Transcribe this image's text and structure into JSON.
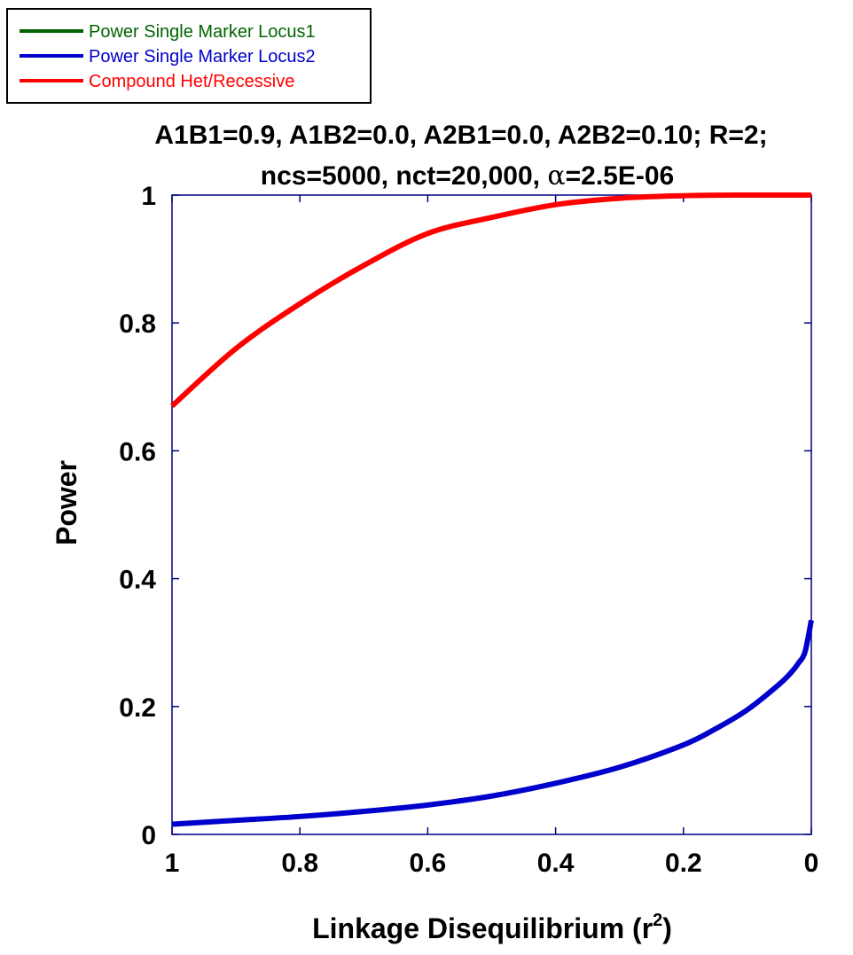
{
  "chart_data": {
    "type": "line",
    "title_line1": "A1B1=0.9, A1B2=0.0, A2B1=0.0, A2B2=0.10; R=2;",
    "title_line2_prefix": "ncs=5000, nct=20,000, ",
    "title_line2_alpha": "α",
    "title_line2_suffix": "=2.5E-06",
    "xlabel_text": "Linkage Disequilibrium (r",
    "xlabel_sup": "2",
    "xlabel_close": ")",
    "ylabel": "Power",
    "xlim": [
      1,
      0
    ],
    "ylim": [
      0,
      1
    ],
    "x_reversed": true,
    "grid": false,
    "x_ticks": [
      1,
      0.8,
      0.6,
      0.4,
      0.2,
      0
    ],
    "x_tick_labels": [
      "1",
      "0.8",
      "0.6",
      "0.4",
      "0.2",
      "0"
    ],
    "y_ticks": [
      0,
      0.2,
      0.4,
      0.6,
      0.8,
      1
    ],
    "y_tick_labels": [
      "0",
      "0.2",
      "0.4",
      "0.6",
      "0.8",
      "1"
    ],
    "legend_position": "top-left, outside plot",
    "legend": [
      {
        "label": "Power Single Marker Locus1",
        "color": "#006400"
      },
      {
        "label": "Power Single Marker Locus2",
        "color": "#0000cc"
      },
      {
        "label": "Compound Het/Recessive",
        "color": "#ff0000"
      }
    ],
    "series": [
      {
        "name": "Power Single Marker Locus1",
        "color": "#006400",
        "x": [],
        "y": []
      },
      {
        "name": "Power Single Marker Locus2",
        "color": "#0000cc",
        "x": [
          1.0,
          0.9,
          0.8,
          0.7,
          0.6,
          0.5,
          0.4,
          0.3,
          0.2,
          0.15,
          0.1,
          0.05,
          0.03,
          0.02,
          0.01,
          0.0
        ],
        "y": [
          0.016,
          0.022,
          0.028,
          0.036,
          0.046,
          0.06,
          0.08,
          0.105,
          0.14,
          0.165,
          0.195,
          0.235,
          0.255,
          0.268,
          0.285,
          0.335
        ]
      },
      {
        "name": "Compound Het/Recessive",
        "color": "#ff0000",
        "x": [
          1.0,
          0.9,
          0.8,
          0.7,
          0.6,
          0.5,
          0.4,
          0.3,
          0.2,
          0.1,
          0.0
        ],
        "y": [
          0.67,
          0.76,
          0.83,
          0.89,
          0.94,
          0.965,
          0.985,
          0.995,
          0.999,
          1.0,
          1.0
        ]
      }
    ]
  }
}
